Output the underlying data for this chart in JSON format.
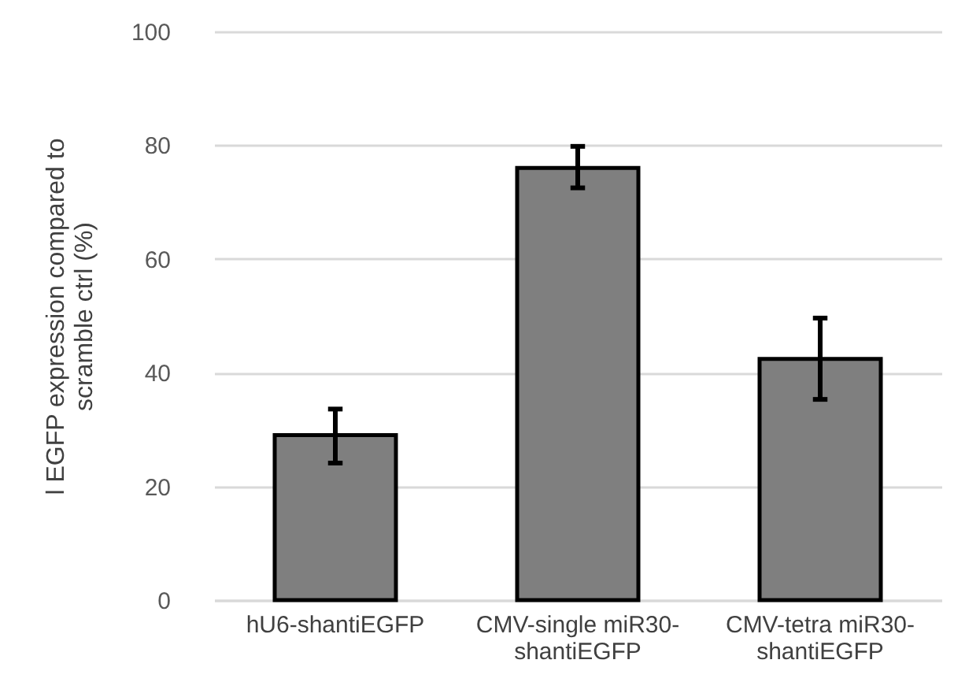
{
  "chart_data": {
    "type": "bar",
    "categories": [
      "hU6-shantiEGFP",
      "CMV-single miR30-shantiEGFP",
      "CMV-tetra miR30-shantiEGFP"
    ],
    "values": [
      29.0,
      76.0,
      42.4
    ],
    "errors": [
      [
        24.1,
        33.6
      ],
      [
        72.5,
        79.8
      ],
      [
        35.3,
        49.6
      ]
    ],
    "color": "#7f7f7f",
    "ylabel": "l EGFP expression compared to\nscramble ctrl (%)",
    "ylim": [
      0,
      100
    ],
    "yticks": [
      0,
      20,
      40,
      60,
      80,
      100
    ],
    "grid": "y"
  }
}
